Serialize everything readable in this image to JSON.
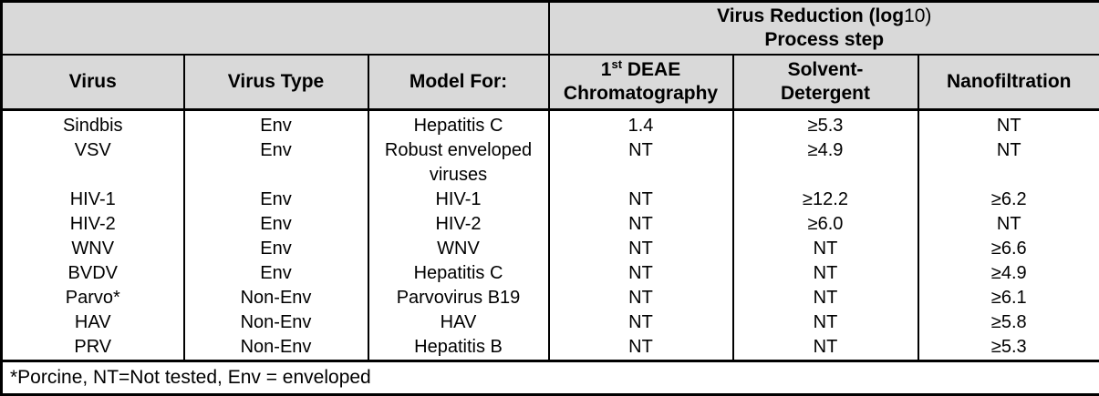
{
  "header": {
    "group_title_bold": "Virus Reduction (log",
    "group_title_regular": "10)",
    "group_subtitle": "Process step",
    "columns": {
      "virus": "Virus",
      "virus_type": "Virus Type",
      "model_for": "Model For:",
      "deae": {
        "num": "1",
        "sup": "st",
        "rest": " DEAE",
        "line2": "Chromatography"
      },
      "solvent": {
        "line1": "Solvent-",
        "line2": "Detergent"
      },
      "nanofiltration": "Nanofiltration"
    }
  },
  "rows": [
    [
      "Sindbis",
      "Env",
      "Hepatitis C",
      "1.4",
      "≥5.3",
      "NT"
    ],
    [
      "VSV",
      "Env",
      "Robust enveloped\nviruses",
      "NT",
      "≥4.9",
      "NT"
    ],
    [
      "HIV-1",
      "Env",
      "HIV-1",
      "NT",
      "≥12.2",
      "≥6.2"
    ],
    [
      "HIV-2",
      "Env",
      "HIV-2",
      "NT",
      "≥6.0",
      "NT"
    ],
    [
      "WNV",
      "Env",
      "WNV",
      "NT",
      "NT",
      "≥6.6"
    ],
    [
      "BVDV",
      "Env",
      "Hepatitis C",
      "NT",
      "NT",
      "≥4.9"
    ],
    [
      "Parvo*",
      "Non-Env",
      "Parvovirus B19",
      "NT",
      "NT",
      "≥6.1"
    ],
    [
      "HAV",
      "Non-Env",
      "HAV",
      "NT",
      "NT",
      "≥5.8"
    ],
    [
      "PRV",
      "Non-Env",
      "Hepatitis B",
      "NT",
      "NT",
      "≥5.3"
    ]
  ],
  "footnote": "*Porcine, NT=Not tested, Env = enveloped",
  "colors": {
    "header_bg": "#d9d9d9",
    "body_bg": "#ffffff",
    "border": "#000000"
  }
}
